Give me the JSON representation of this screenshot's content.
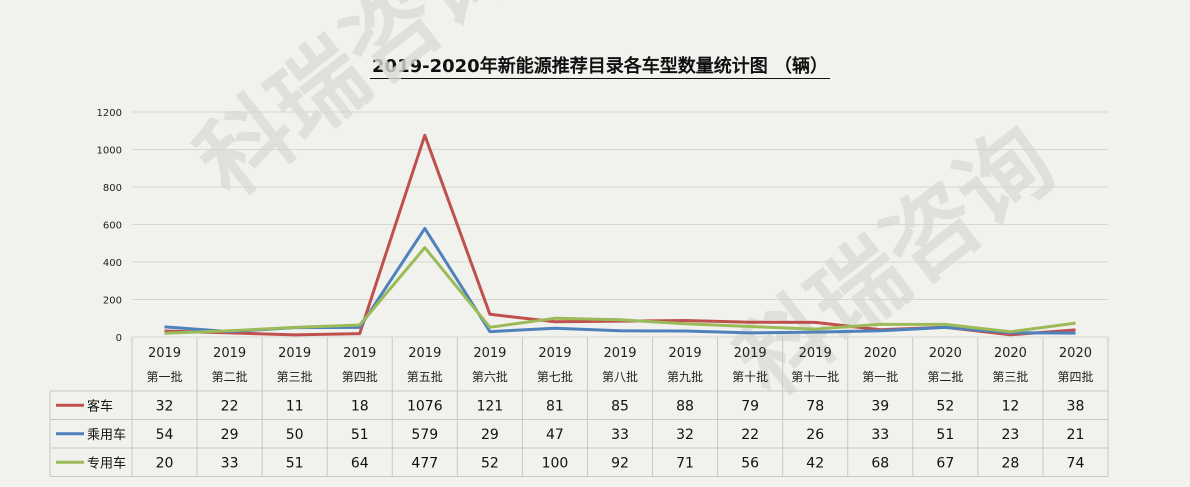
{
  "chart_data": {
    "type": "line",
    "title": "2019-2020年新能源推荐目录各车型数量统计图 （辆）",
    "categories": [
      {
        "year": "2019",
        "batch": "第一批"
      },
      {
        "year": "2019",
        "batch": "第二批"
      },
      {
        "year": "2019",
        "batch": "第三批"
      },
      {
        "year": "2019",
        "batch": "第四批"
      },
      {
        "year": "2019",
        "batch": "第五批"
      },
      {
        "year": "2019",
        "batch": "第六批"
      },
      {
        "year": "2019",
        "batch": "第七批"
      },
      {
        "year": "2019",
        "batch": "第八批"
      },
      {
        "year": "2019",
        "batch": "第九批"
      },
      {
        "year": "2019",
        "batch": "第十批"
      },
      {
        "year": "2019",
        "batch": "第十一批"
      },
      {
        "year": "2020",
        "batch": "第一批"
      },
      {
        "year": "2020",
        "batch": "第二批"
      },
      {
        "year": "2020",
        "batch": "第三批"
      },
      {
        "year": "2020",
        "batch": "第四批"
      }
    ],
    "series": [
      {
        "name": "客车",
        "color": "#c0504d",
        "values": [
          32,
          22,
          11,
          18,
          1076,
          121,
          81,
          85,
          88,
          79,
          78,
          39,
          52,
          12,
          38
        ]
      },
      {
        "name": "乘用车",
        "color": "#4f81bd",
        "values": [
          54,
          29,
          50,
          51,
          579,
          29,
          47,
          33,
          32,
          22,
          26,
          33,
          51,
          23,
          21
        ]
      },
      {
        "name": "专用车",
        "color": "#9bbb59",
        "values": [
          20,
          33,
          51,
          64,
          477,
          52,
          100,
          92,
          71,
          56,
          42,
          68,
          67,
          28,
          74
        ]
      }
    ],
    "ylim": [
      0,
      1200
    ],
    "yticks": [
      "0",
      "200",
      "400",
      "600",
      "800",
      "1000",
      "1200"
    ],
    "grid": true,
    "legend": "data-table"
  },
  "watermark": "科瑞咨询"
}
